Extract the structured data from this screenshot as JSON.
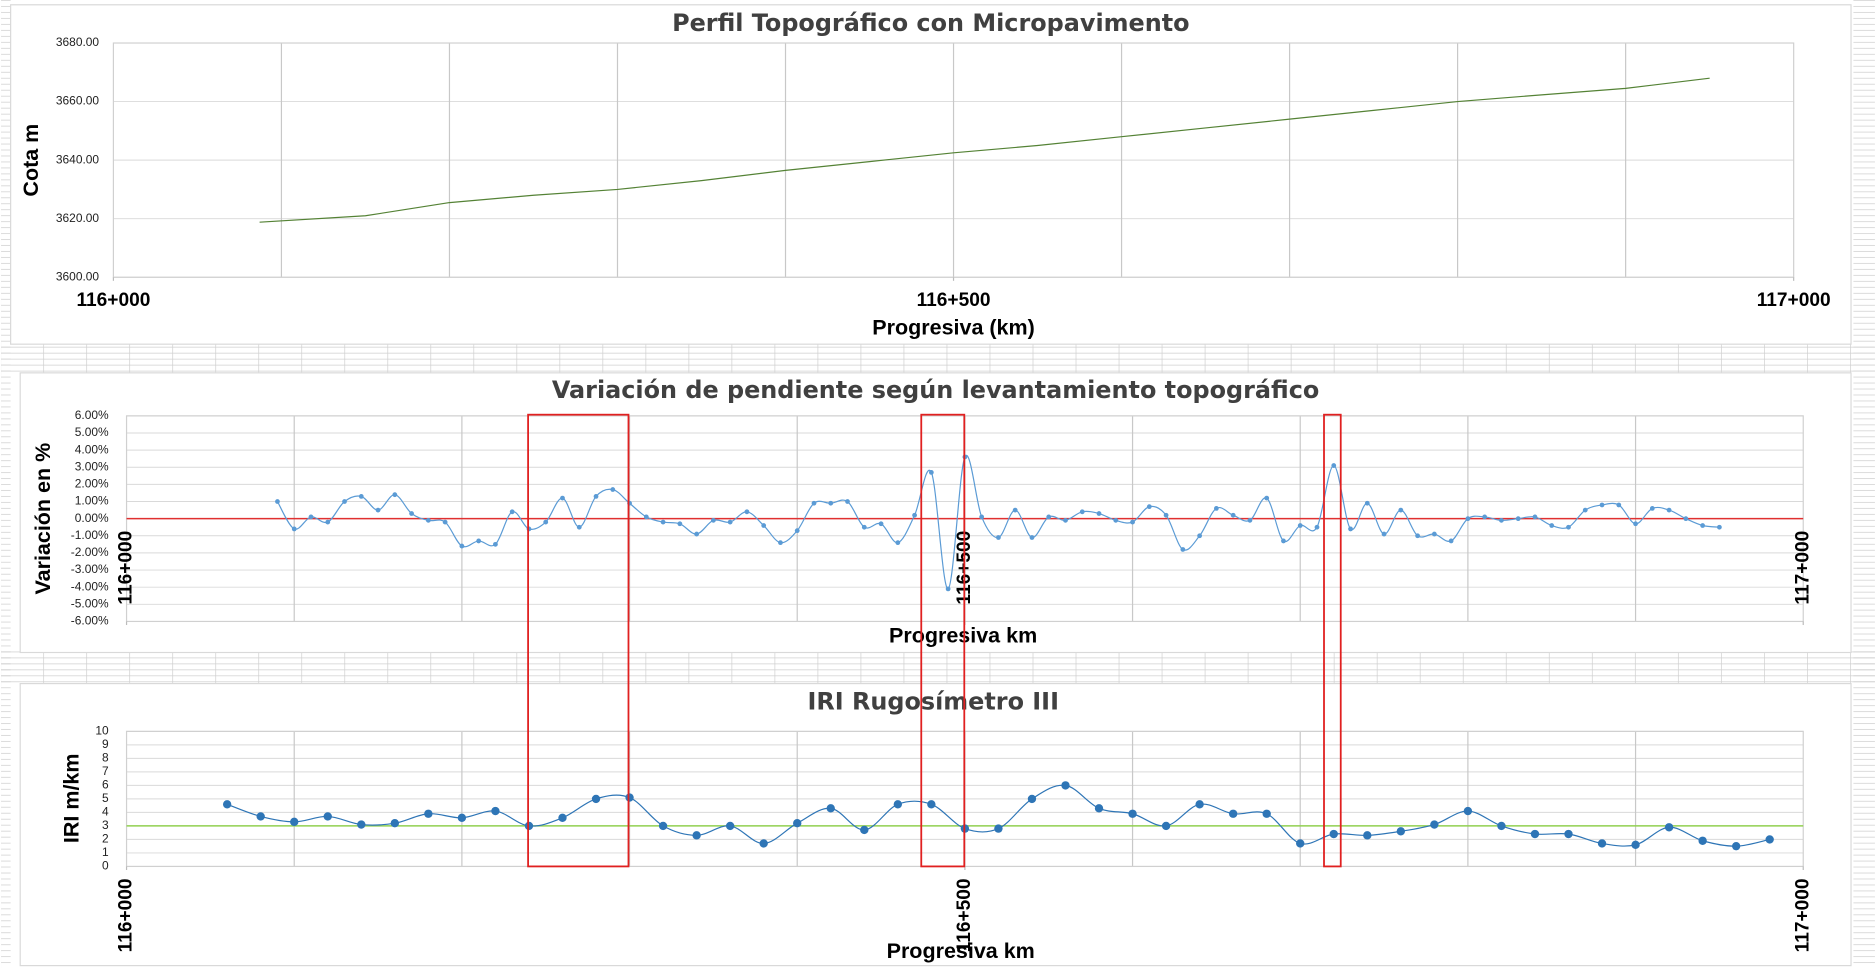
{
  "chart_data": [
    {
      "type": "line",
      "title": "Perfil Topográfico con Micropavimento",
      "x_label": "Progresiva (km)",
      "y_label": "Cota m",
      "color": "#548235",
      "markers": false,
      "smooth": false,
      "x": [
        116087,
        116150,
        116200,
        116250,
        116300,
        116350,
        116400,
        116450,
        116500,
        116550,
        116600,
        116650,
        116700,
        116750,
        116800,
        116850,
        116900,
        116950
      ],
      "values": [
        3618.8,
        3621,
        3625.5,
        3628,
        3630,
        3633,
        3636.5,
        3639.5,
        3642.5,
        3645,
        3648,
        3651,
        3654,
        3657,
        3660,
        3662.3,
        3664.5,
        3668
      ],
      "xlim": [
        116000,
        117000
      ],
      "xticks": [
        {
          "value": 116000,
          "label": "116+000"
        },
        {
          "value": 116500,
          "label": "116+500"
        },
        {
          "value": 117000,
          "label": "117+000"
        }
      ],
      "xgrid": [
        116100,
        116200,
        116300,
        116400,
        116500,
        116600,
        116700,
        116800,
        116900
      ],
      "ylim": [
        3600,
        3680
      ],
      "yticks": [
        {
          "value": 3600,
          "label": "3600.00"
        },
        {
          "value": 3620,
          "label": "3620.00"
        },
        {
          "value": 3640,
          "label": "3640.00"
        },
        {
          "value": 3660,
          "label": "3660.00"
        },
        {
          "value": 3680,
          "label": "3680.00"
        }
      ],
      "grid": true
    },
    {
      "type": "line",
      "title": "Variación de pendiente según levantamiento topográfico",
      "x_label": "Progresiva km",
      "y_label": "Variación en %",
      "color": "#5b9bd5",
      "markers": true,
      "marker_size": 2,
      "smooth": true,
      "x": [
        116090,
        116100,
        116110,
        116120,
        116130,
        116140,
        116150,
        116160,
        116170,
        116180,
        116190,
        116200,
        116210,
        116220,
        116230,
        116240,
        116250,
        116260,
        116270,
        116280,
        116290,
        116300,
        116310,
        116320,
        116330,
        116340,
        116350,
        116360,
        116370,
        116380,
        116390,
        116400,
        116410,
        116420,
        116430,
        116440,
        116450,
        116460,
        116470,
        116480,
        116490,
        116500,
        116510,
        116520,
        116530,
        116540,
        116550,
        116560,
        116570,
        116580,
        116590,
        116600,
        116610,
        116620,
        116630,
        116640,
        116650,
        116660,
        116670,
        116680,
        116690,
        116700,
        116710,
        116720,
        116730,
        116740,
        116750,
        116760,
        116770,
        116780,
        116790,
        116800,
        116810,
        116820,
        116830,
        116840,
        116850,
        116860,
        116870,
        116880,
        116890,
        116900,
        116910,
        116920,
        116930,
        116940,
        116950
      ],
      "values": [
        1.0,
        -0.6,
        0.1,
        -0.2,
        1.0,
        1.3,
        0.5,
        1.4,
        0.3,
        -0.1,
        -0.2,
        -1.6,
        -1.3,
        -1.5,
        0.4,
        -0.6,
        -0.2,
        1.2,
        -0.5,
        1.3,
        1.7,
        0.9,
        0.1,
        -0.2,
        -0.3,
        -0.9,
        -0.1,
        -0.2,
        0.4,
        -0.4,
        -1.4,
        -0.7,
        0.9,
        0.9,
        1.0,
        -0.5,
        -0.3,
        -1.4,
        0.2,
        2.7,
        -4.1,
        3.6,
        0.1,
        -1.1,
        0.5,
        -1.1,
        0.1,
        -0.1,
        0.4,
        0.3,
        -0.1,
        -0.2,
        0.7,
        0.2,
        -1.8,
        -1.0,
        0.6,
        0.2,
        -0.1,
        1.2,
        -1.3,
        -0.4,
        -0.5,
        3.1,
        -0.6,
        0.9,
        -0.9,
        0.5,
        -1.0,
        -0.9,
        -1.3,
        0.0,
        0.1,
        -0.1,
        0.0,
        0.1,
        -0.4,
        -0.5,
        0.5,
        0.8,
        0.8,
        -0.3,
        0.6,
        0.5,
        0.0,
        -0.4,
        -0.5
      ],
      "reference_line": {
        "value": 0,
        "color": "#e03030"
      },
      "xlim": [
        116000,
        117000
      ],
      "xticks": [
        {
          "value": 116000,
          "label": "116+000"
        },
        {
          "value": 116500,
          "label": "116+500"
        },
        {
          "value": 117000,
          "label": "117+000"
        }
      ],
      "xgrid": [
        116100,
        116200,
        116300,
        116400,
        116500,
        116600,
        116700,
        116800,
        116900
      ],
      "ylim": [
        -6,
        6
      ],
      "yticks": [
        {
          "value": -6,
          "label": "-6.00%"
        },
        {
          "value": -5,
          "label": "-5.00%"
        },
        {
          "value": -4,
          "label": "-4.00%"
        },
        {
          "value": -3,
          "label": "-3.00%"
        },
        {
          "value": -2,
          "label": "-2.00%"
        },
        {
          "value": -1,
          "label": "-1.00%"
        },
        {
          "value": 0,
          "label": "0.00%"
        },
        {
          "value": 1,
          "label": "1.00%"
        },
        {
          "value": 2,
          "label": "2.00%"
        },
        {
          "value": 3,
          "label": "3.00%"
        },
        {
          "value": 4,
          "label": "4.00%"
        },
        {
          "value": 5,
          "label": "5.00%"
        },
        {
          "value": 6,
          "label": "6.00%"
        }
      ],
      "grid": true
    },
    {
      "type": "line",
      "title": "IRI Rugosímetro III",
      "x_label": "Progresiva  km",
      "y_label": "IRI m/km",
      "color": "#2e75b6",
      "markers": true,
      "marker_size": 3.5,
      "smooth": true,
      "x": [
        116060,
        116080,
        116100,
        116120,
        116140,
        116160,
        116180,
        116200,
        116220,
        116240,
        116260,
        116280,
        116300,
        116320,
        116340,
        116360,
        116380,
        116400,
        116420,
        116440,
        116460,
        116480,
        116500,
        116520,
        116540,
        116560,
        116580,
        116600,
        116620,
        116640,
        116660,
        116680,
        116700,
        116720,
        116740,
        116760,
        116780,
        116800,
        116820,
        116840,
        116860,
        116880,
        116900,
        116920,
        116940,
        116960,
        116980
      ],
      "values": [
        4.6,
        3.7,
        3.3,
        3.7,
        3.1,
        3.2,
        3.9,
        3.6,
        4.1,
        3.0,
        3.6,
        5.0,
        5.1,
        3.0,
        2.3,
        3.0,
        1.7,
        3.2,
        4.3,
        2.7,
        4.6,
        4.6,
        2.8,
        2.8,
        5.0,
        6.0,
        4.3,
        3.9,
        3.0,
        4.6,
        3.9,
        3.9,
        1.7,
        2.4,
        2.3,
        2.6,
        3.1,
        4.1,
        3.0,
        2.4,
        2.4,
        1.7,
        1.6,
        2.9,
        1.9,
        1.5,
        2.0
      ],
      "reference_line": {
        "value": 3,
        "color": "#92d050"
      },
      "xlim": [
        116000,
        117000
      ],
      "xticks": [
        {
          "value": 116000,
          "label": "116+000"
        },
        {
          "value": 116500,
          "label": "116+500"
        },
        {
          "value": 117000,
          "label": "117+000"
        }
      ],
      "xgrid": [
        116100,
        116200,
        116300,
        116400,
        116500,
        116600,
        116700,
        116800,
        116900
      ],
      "ylim": [
        0,
        10
      ],
      "yticks": [
        0,
        1,
        2,
        3,
        4,
        5,
        6,
        7,
        8,
        9,
        10
      ],
      "grid": true
    }
  ]
}
